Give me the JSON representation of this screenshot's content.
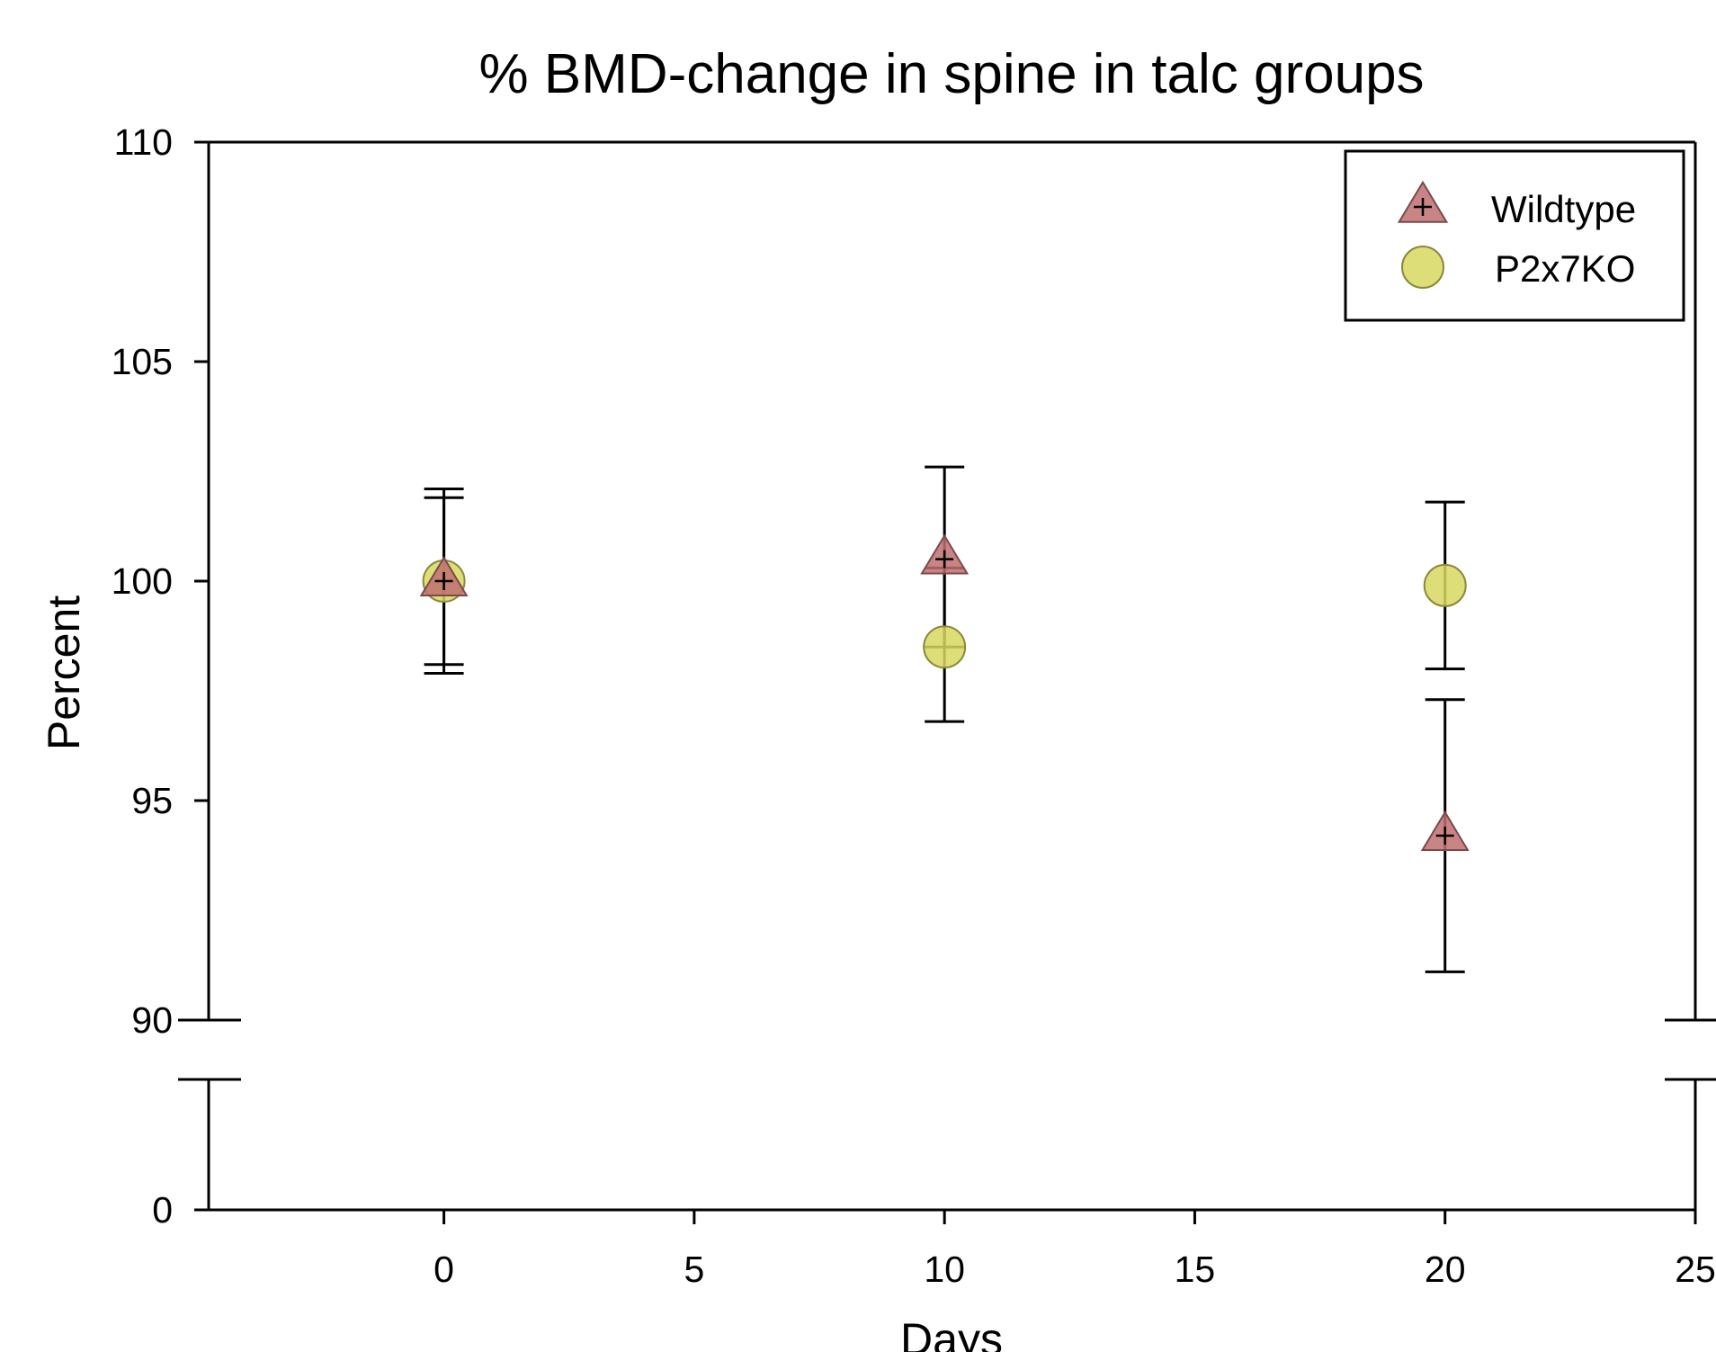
{
  "chart_data": {
    "type": "scatter",
    "title": "% BMD-change in spine in talc groups",
    "xlabel": "Days",
    "ylabel": "Percent",
    "x_ticks": [
      0,
      5,
      10,
      15,
      20,
      25
    ],
    "y_ticks": [
      0,
      90,
      95,
      100,
      105,
      110
    ],
    "xlim": [
      -4.7,
      25
    ],
    "ylim": [
      0,
      110
    ],
    "y_axis_break": [
      0,
      90
    ],
    "grid": false,
    "legend_position": "top-right",
    "series": [
      {
        "name": "Wildtype",
        "marker": "triangle",
        "color": "#c07070",
        "points": [
          {
            "x": 0,
            "y": 100.0,
            "err_low": 98.1,
            "err_high": 101.9
          },
          {
            "x": 10,
            "y": 100.5,
            "err_low": 98.5,
            "err_high": 102.6
          },
          {
            "x": 20,
            "y": 94.2,
            "err_low": 91.1,
            "err_high": 97.3
          }
        ]
      },
      {
        "name": "P2x7KO",
        "marker": "circle",
        "color": "#d8d860",
        "points": [
          {
            "x": 0,
            "y": 100.0,
            "err_low": 97.9,
            "err_high": 102.1
          },
          {
            "x": 10,
            "y": 98.5,
            "err_low": 96.8,
            "err_high": 100.3
          },
          {
            "x": 20,
            "y": 99.9,
            "err_low": 98.0,
            "err_high": 101.8
          }
        ]
      }
    ]
  }
}
